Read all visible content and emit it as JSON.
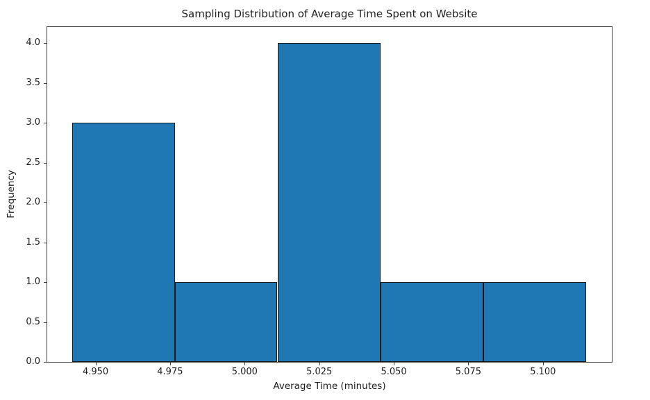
{
  "chart_data": {
    "type": "bar",
    "subtype": "histogram",
    "title": "Sampling Distribution of Average Time Spent on Website",
    "xlabel": "Average Time (minutes)",
    "ylabel": "Frequency",
    "bar_color": "#1f77b4",
    "bar_edge_color": "#14191e",
    "background_color": "#ffffff",
    "grid": false,
    "legend": "none",
    "bins": {
      "edges": [
        4.9421,
        4.9766,
        5.011,
        5.0455,
        5.08,
        5.1144
      ],
      "counts": [
        3,
        1,
        4,
        1,
        1
      ]
    },
    "xlim": [
      4.9338,
      5.1231
    ],
    "ylim": [
      0,
      4.2
    ],
    "xticks": [
      {
        "value": 4.95,
        "label": "4.950"
      },
      {
        "value": 4.975,
        "label": "4.975"
      },
      {
        "value": 5.0,
        "label": "5.000"
      },
      {
        "value": 5.025,
        "label": "5.025"
      },
      {
        "value": 5.05,
        "label": "5.050"
      },
      {
        "value": 5.075,
        "label": "5.075"
      },
      {
        "value": 5.1,
        "label": "5.100"
      }
    ],
    "yticks": [
      {
        "value": 0.0,
        "label": "0.0"
      },
      {
        "value": 0.5,
        "label": "0.5"
      },
      {
        "value": 1.0,
        "label": "1.0"
      },
      {
        "value": 1.5,
        "label": "1.5"
      },
      {
        "value": 2.0,
        "label": "2.0"
      },
      {
        "value": 2.5,
        "label": "2.5"
      },
      {
        "value": 3.0,
        "label": "3.0"
      },
      {
        "value": 3.5,
        "label": "3.5"
      },
      {
        "value": 4.0,
        "label": "4.0"
      }
    ]
  }
}
